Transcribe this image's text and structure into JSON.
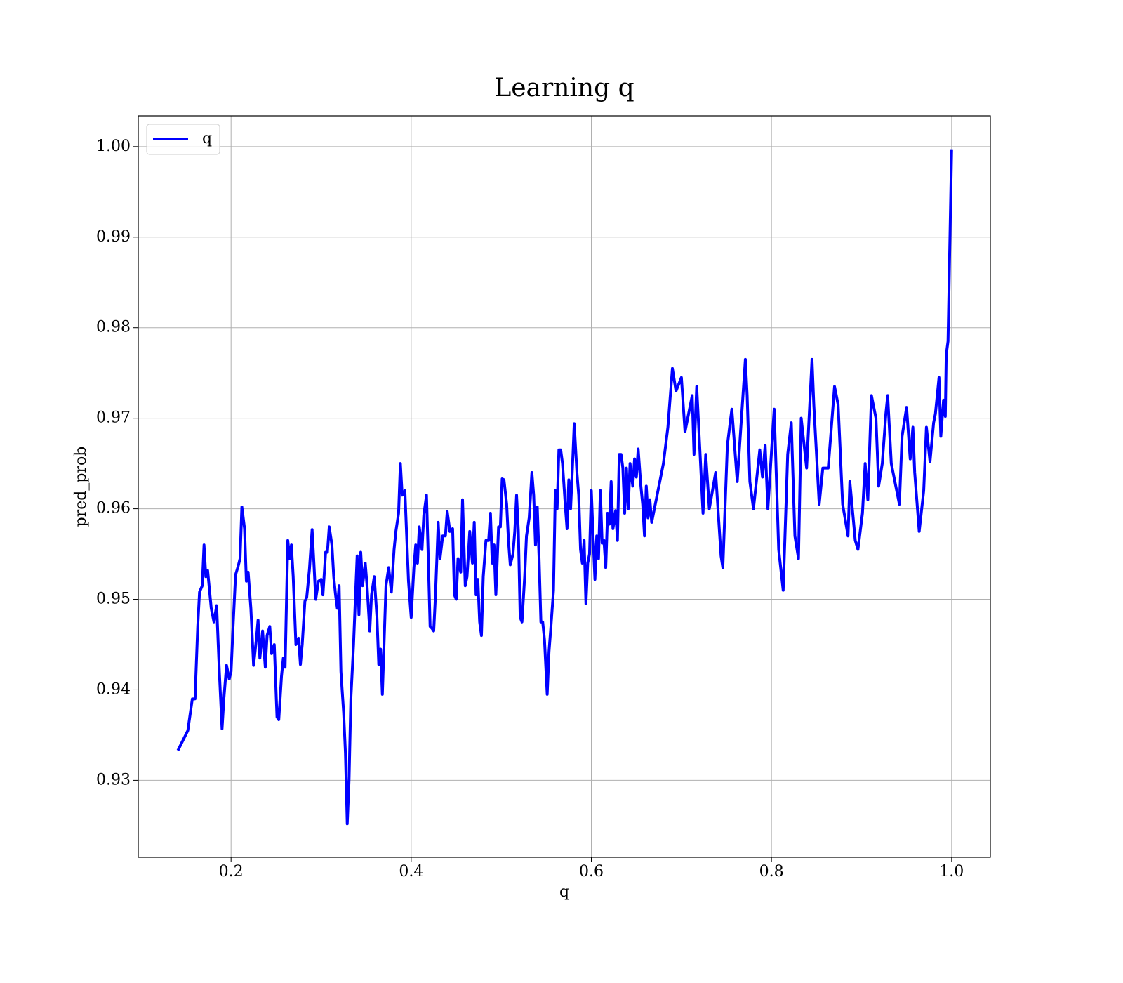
{
  "chart_data": {
    "type": "line",
    "title": "Learning q",
    "xlabel": "q",
    "ylabel": "pred_prob",
    "grid": true,
    "legend": "upper left",
    "xlim": [
      0.097,
      1.043
    ],
    "xticks": [
      0.2,
      0.4,
      0.6,
      0.8,
      {
        "value": 1,
        "label": "1.0"
      }
    ],
    "ylim": [
      0.9215,
      1.0034
    ],
    "yticks": [
      0.93,
      0.94,
      0.95,
      0.96,
      0.97,
      0.98,
      0.99,
      {
        "value": 1,
        "label": "1.00"
      }
    ],
    "x": [
      0.141,
      0.152,
      0.157,
      0.16,
      0.163,
      0.165,
      0.168,
      0.17,
      0.172,
      0.174,
      0.178,
      0.181,
      0.184,
      0.187,
      0.19,
      0.192,
      0.195,
      0.198,
      0.2,
      0.202,
      0.205,
      0.208,
      0.21,
      0.212,
      0.215,
      0.217,
      0.219,
      0.222,
      0.225,
      0.228,
      0.23,
      0.232,
      0.235,
      0.238,
      0.24,
      0.243,
      0.245,
      0.248,
      0.251,
      0.253,
      0.256,
      0.258,
      0.26,
      0.263,
      0.265,
      0.267,
      0.269,
      0.272,
      0.275,
      0.277,
      0.279,
      0.282,
      0.284,
      0.287,
      0.29,
      0.292,
      0.294,
      0.297,
      0.3,
      0.302,
      0.305,
      0.307,
      0.309,
      0.312,
      0.314,
      0.316,
      0.318,
      0.32,
      0.322,
      0.325,
      0.327,
      0.329,
      0.331,
      0.333,
      0.336,
      0.338,
      0.34,
      0.342,
      0.344,
      0.346,
      0.349,
      0.351,
      0.354,
      0.356,
      0.359,
      0.362,
      0.364,
      0.366,
      0.368,
      0.372,
      0.375,
      0.378,
      0.381,
      0.383,
      0.386,
      0.388,
      0.39,
      0.393,
      0.395,
      0.397,
      0.4,
      0.403,
      0.405,
      0.407,
      0.409,
      0.412,
      0.414,
      0.417,
      0.419,
      0.421,
      0.423,
      0.425,
      0.427,
      0.43,
      0.432,
      0.435,
      0.438,
      0.44,
      0.443,
      0.446,
      0.448,
      0.45,
      0.452,
      0.455,
      0.457,
      0.46,
      0.462,
      0.465,
      0.468,
      0.47,
      0.472,
      0.474,
      0.476,
      0.478,
      0.48,
      0.483,
      0.486,
      0.488,
      0.49,
      0.492,
      0.494,
      0.497,
      0.499,
      0.501,
      0.503,
      0.506,
      0.508,
      0.51,
      0.513,
      0.515,
      0.517,
      0.519,
      0.521,
      0.523,
      0.526,
      0.528,
      0.531,
      0.534,
      0.536,
      0.538,
      0.54,
      0.542,
      0.544,
      0.546,
      0.548,
      0.551,
      0.553,
      0.555,
      0.558,
      0.56,
      0.562,
      0.564,
      0.566,
      0.568,
      0.571,
      0.573,
      0.575,
      0.577,
      0.579,
      0.581,
      0.584,
      0.586,
      0.588,
      0.59,
      0.592,
      0.594,
      0.596,
      0.598,
      0.6,
      0.602,
      0.604,
      0.606,
      0.608,
      0.61,
      0.612,
      0.614,
      0.616,
      0.618,
      0.62,
      0.622,
      0.624,
      0.627,
      0.629,
      0.631,
      0.633,
      0.635,
      0.637,
      0.639,
      0.641,
      0.643,
      0.646,
      0.648,
      0.65,
      0.652,
      0.655,
      0.657,
      0.659,
      0.661,
      0.663,
      0.665,
      0.667,
      0.68,
      0.685,
      0.69,
      0.694,
      0.7,
      0.704,
      0.712,
      0.714,
      0.717,
      0.724,
      0.727,
      0.731,
      0.738,
      0.744,
      0.746,
      0.751,
      0.756,
      0.762,
      0.771,
      0.773,
      0.776,
      0.78,
      0.787,
      0.79,
      0.793,
      0.796,
      0.803,
      0.808,
      0.813,
      0.818,
      0.822,
      0.826,
      0.83,
      0.833,
      0.839,
      0.845,
      0.847,
      0.853,
      0.857,
      0.863,
      0.87,
      0.874,
      0.879,
      0.885,
      0.887,
      0.893,
      0.896,
      0.901,
      0.904,
      0.907,
      0.911,
      0.916,
      0.919,
      0.923,
      0.927,
      0.929,
      0.933,
      0.942,
      0.945,
      0.95,
      0.954,
      0.957,
      0.959,
      0.964,
      0.969,
      0.972,
      0.976,
      0.98,
      0.982,
      0.986,
      0.988,
      0.991,
      0.993,
      0.994,
      0.996,
      1.0
    ],
    "series": [
      {
        "name": "q",
        "color": "#0000ff",
        "values": [
          0.9333,
          0.9355,
          0.939,
          0.939,
          0.947,
          0.9508,
          0.9515,
          0.956,
          0.9525,
          0.9532,
          0.949,
          0.9475,
          0.9493,
          0.942,
          0.9357,
          0.939,
          0.9427,
          0.9412,
          0.942,
          0.9465,
          0.9527,
          0.9537,
          0.9545,
          0.9602,
          0.9578,
          0.952,
          0.953,
          0.949,
          0.9427,
          0.9455,
          0.9477,
          0.9435,
          0.9465,
          0.9425,
          0.946,
          0.947,
          0.944,
          0.945,
          0.937,
          0.9367,
          0.9415,
          0.9435,
          0.9425,
          0.9565,
          0.9545,
          0.956,
          0.9525,
          0.945,
          0.9457,
          0.9428,
          0.945,
          0.9498,
          0.9502,
          0.9533,
          0.9577,
          0.954,
          0.95,
          0.952,
          0.9522,
          0.9505,
          0.9552,
          0.9552,
          0.958,
          0.956,
          0.9525,
          0.9505,
          0.949,
          0.9515,
          0.942,
          0.9375,
          0.933,
          0.9252,
          0.93,
          0.939,
          0.945,
          0.95,
          0.9548,
          0.9483,
          0.9552,
          0.9515,
          0.954,
          0.9515,
          0.9465,
          0.9505,
          0.9525,
          0.948,
          0.9428,
          0.9445,
          0.9395,
          0.9515,
          0.9535,
          0.9508,
          0.9555,
          0.9575,
          0.9595,
          0.965,
          0.9615,
          0.962,
          0.957,
          0.952,
          0.948,
          0.9535,
          0.956,
          0.954,
          0.958,
          0.9555,
          0.9593,
          0.9615,
          0.9545,
          0.947,
          0.9468,
          0.9465,
          0.9505,
          0.9585,
          0.9545,
          0.957,
          0.957,
          0.9597,
          0.9575,
          0.9578,
          0.9505,
          0.95,
          0.9545,
          0.953,
          0.961,
          0.9515,
          0.9525,
          0.9575,
          0.954,
          0.9585,
          0.9505,
          0.9522,
          0.9475,
          0.946,
          0.9525,
          0.9565,
          0.9565,
          0.9595,
          0.954,
          0.956,
          0.9505,
          0.958,
          0.958,
          0.9633,
          0.9632,
          0.9605,
          0.9565,
          0.9538,
          0.955,
          0.9575,
          0.9615,
          0.9575,
          0.948,
          0.9475,
          0.9525,
          0.957,
          0.959,
          0.964,
          0.9615,
          0.956,
          0.9602,
          0.9545,
          0.9475,
          0.9475,
          0.9455,
          0.9395,
          0.9442,
          0.9468,
          0.951,
          0.962,
          0.96,
          0.9665,
          0.9665,
          0.965,
          0.9605,
          0.9578,
          0.9632,
          0.96,
          0.9645,
          0.9694,
          0.964,
          0.9615,
          0.9555,
          0.954,
          0.9565,
          0.9495,
          0.954,
          0.955,
          0.962,
          0.9568,
          0.9522,
          0.957,
          0.9545,
          0.962,
          0.9562,
          0.9565,
          0.9535,
          0.9595,
          0.9583,
          0.963,
          0.9578,
          0.9598,
          0.9565,
          0.966,
          0.966,
          0.9645,
          0.9595,
          0.9645,
          0.96,
          0.965,
          0.9625,
          0.9655,
          0.9635,
          0.9666,
          0.9625,
          0.9605,
          0.957,
          0.9625,
          0.959,
          0.961,
          0.9585,
          0.965,
          0.969,
          0.9755,
          0.973,
          0.9745,
          0.9685,
          0.9725,
          0.966,
          0.9735,
          0.9595,
          0.966,
          0.96,
          0.964,
          0.9548,
          0.9535,
          0.967,
          0.971,
          0.963,
          0.9765,
          0.9725,
          0.963,
          0.96,
          0.9665,
          0.9635,
          0.967,
          0.96,
          0.971,
          0.9555,
          0.951,
          0.966,
          0.9695,
          0.957,
          0.9545,
          0.97,
          0.9645,
          0.9765,
          0.9715,
          0.9605,
          0.9645,
          0.9645,
          0.9735,
          0.9715,
          0.9605,
          0.957,
          0.963,
          0.9565,
          0.9555,
          0.9595,
          0.965,
          0.961,
          0.9725,
          0.97,
          0.9625,
          0.965,
          0.9705,
          0.9725,
          0.965,
          0.9605,
          0.968,
          0.9712,
          0.9655,
          0.969,
          0.964,
          0.9575,
          0.962,
          0.969,
          0.9652,
          0.9695,
          0.9705,
          0.9745,
          0.968,
          0.972,
          0.9702,
          0.977,
          0.9785,
          0.9997
        ]
      }
    ]
  }
}
